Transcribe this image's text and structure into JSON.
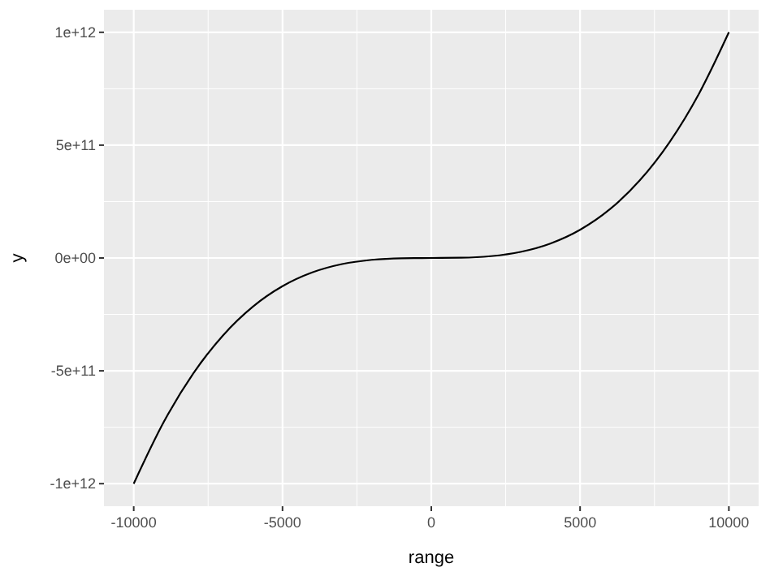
{
  "chart_data": {
    "type": "line",
    "xlabel": "range",
    "ylabel": "y",
    "x": [
      -10000,
      -9000,
      -8000,
      -7000,
      -6000,
      -5000,
      -4000,
      -3000,
      -2000,
      -1000,
      0,
      1000,
      2000,
      3000,
      4000,
      5000,
      6000,
      7000,
      8000,
      9000,
      10000
    ],
    "series": [
      {
        "color": "#000000",
        "values": [
          -1000000000000,
          -729000000000,
          -512000000000,
          -343000000000,
          -216000000000,
          -125000000000,
          -64000000000,
          -27000000000,
          -8000000000,
          -1000000000,
          0,
          1000000000,
          8000000000,
          27000000000,
          64000000000,
          125000000000,
          216000000000,
          343000000000,
          512000000000,
          729000000000,
          1000000000000
        ]
      }
    ],
    "xlim": [
      -11000,
      11000
    ],
    "ylim": [
      -1100000000000,
      1100000000000
    ],
    "xticks": [
      -10000,
      -5000,
      0,
      5000,
      10000
    ],
    "yticks": [
      {
        "value": -1000000000000,
        "label": "-1e+12"
      },
      {
        "value": -500000000000,
        "label": "-5e+11"
      },
      {
        "value": 0,
        "label": "0e+00"
      },
      {
        "value": 500000000000,
        "label": "5e+11"
      },
      {
        "value": 1000000000000,
        "label": "1e+12"
      }
    ],
    "grid": true,
    "marker": "none",
    "line_style": "solid"
  }
}
